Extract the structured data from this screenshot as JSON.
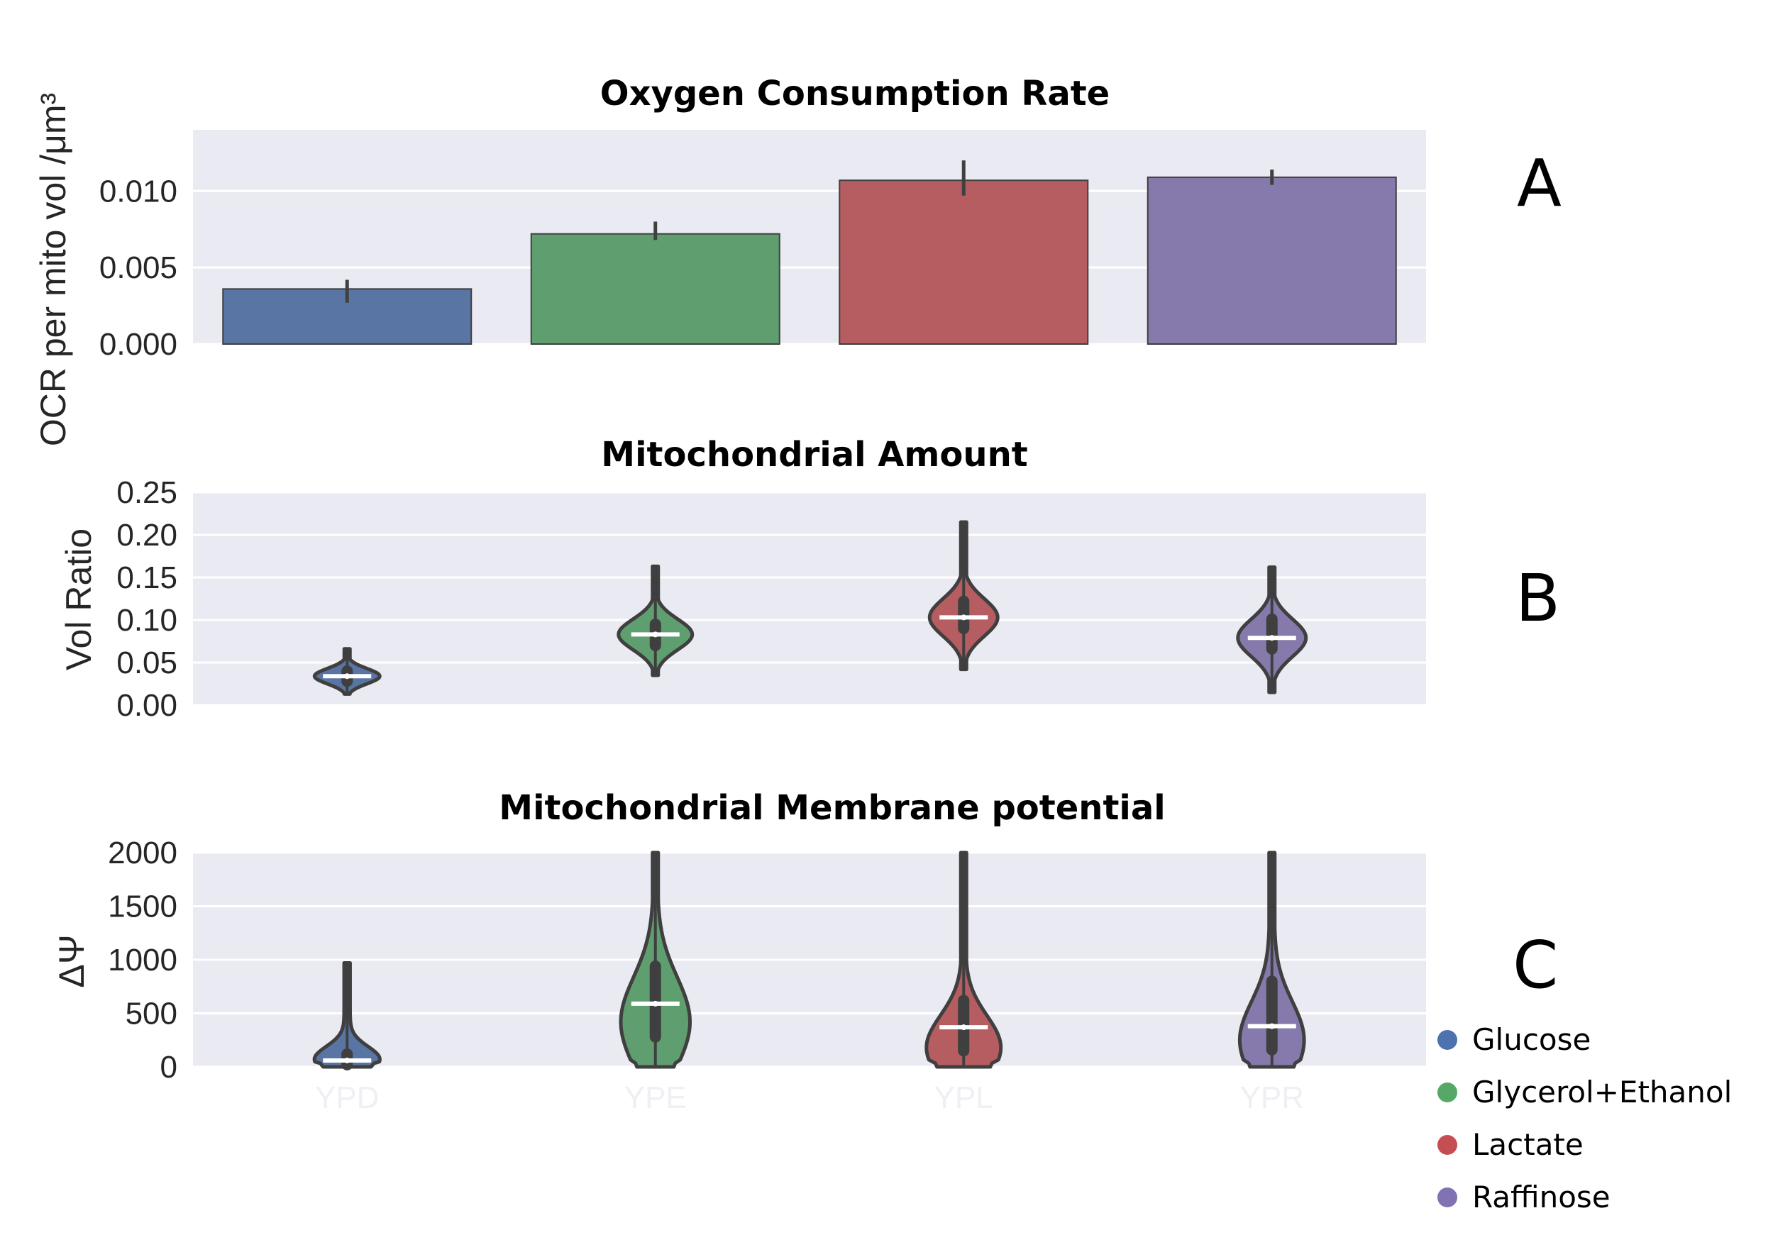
{
  "chart_data": [
    {
      "type": "bar",
      "panel": "A",
      "title": "Oxygen Consumption Rate",
      "ylabel": "OCR per mito vol /μm³",
      "categories": [
        "YPD",
        "YPE",
        "YPL",
        "YPR"
      ],
      "values": [
        0.0036,
        0.0072,
        0.0107,
        0.0109
      ],
      "error_low": [
        0.0027,
        0.0068,
        0.0097,
        0.0104
      ],
      "error_high": [
        0.0042,
        0.008,
        0.012,
        0.0114
      ],
      "yticks": [
        "0.000",
        "0.005",
        "0.010"
      ],
      "ytick_values": [
        0,
        0.005,
        0.01
      ],
      "ylim": [
        0,
        0.014
      ]
    },
    {
      "type": "violin",
      "panel": "B",
      "title": "Mitochondrial Amount",
      "ylabel": "Vol Ratio",
      "categories": [
        "YPD",
        "YPE",
        "YPL",
        "YPR"
      ],
      "median": [
        0.034,
        0.083,
        0.103,
        0.079
      ],
      "min": [
        0.013,
        0.035,
        0.042,
        0.015
      ],
      "max": [
        0.066,
        0.163,
        0.215,
        0.162
      ],
      "q1": [
        0.028,
        0.07,
        0.09,
        0.066
      ],
      "q3": [
        0.04,
        0.095,
        0.122,
        0.101
      ],
      "yticks": [
        "0.00",
        "0.05",
        "0.10",
        "0.15",
        "0.20",
        "0.25"
      ],
      "ytick_values": [
        0,
        0.05,
        0.1,
        0.15,
        0.2,
        0.25
      ],
      "ylim": [
        0,
        0.25
      ]
    },
    {
      "type": "violin",
      "panel": "C",
      "title": "Mitochondrial Membrane potential",
      "ylabel": "ΔΨ",
      "categories": [
        "YPD",
        "YPE",
        "YPL",
        "YPR"
      ],
      "median": [
        60,
        590,
        370,
        380
      ],
      "min": [
        0,
        0,
        0,
        0
      ],
      "max": [
        970,
        2000,
        2000,
        2000
      ],
      "q1": [
        20,
        280,
        150,
        160
      ],
      "q3": [
        120,
        940,
        620,
        800
      ],
      "yticks": [
        "0",
        "500",
        "1000",
        "1500",
        "2000"
      ],
      "ytick_values": [
        0,
        500,
        1000,
        1500,
        2000
      ],
      "ylim": [
        0,
        2000
      ]
    }
  ],
  "legend": [
    {
      "label": "Glucose",
      "color": "#4c72b0"
    },
    {
      "label": "Glycerol+Ethanol",
      "color": "#55a868"
    },
    {
      "label": "Lactate",
      "color": "#c44e52"
    },
    {
      "label": "Raffinose",
      "color": "#8172b2"
    }
  ],
  "colors": {
    "bars": [
      "#5975a4",
      "#5f9e6e",
      "#b55d60",
      "#857aab"
    ],
    "background": "#eaeaf2",
    "grid": "#ffffff",
    "edge": "#3f3f3f"
  }
}
